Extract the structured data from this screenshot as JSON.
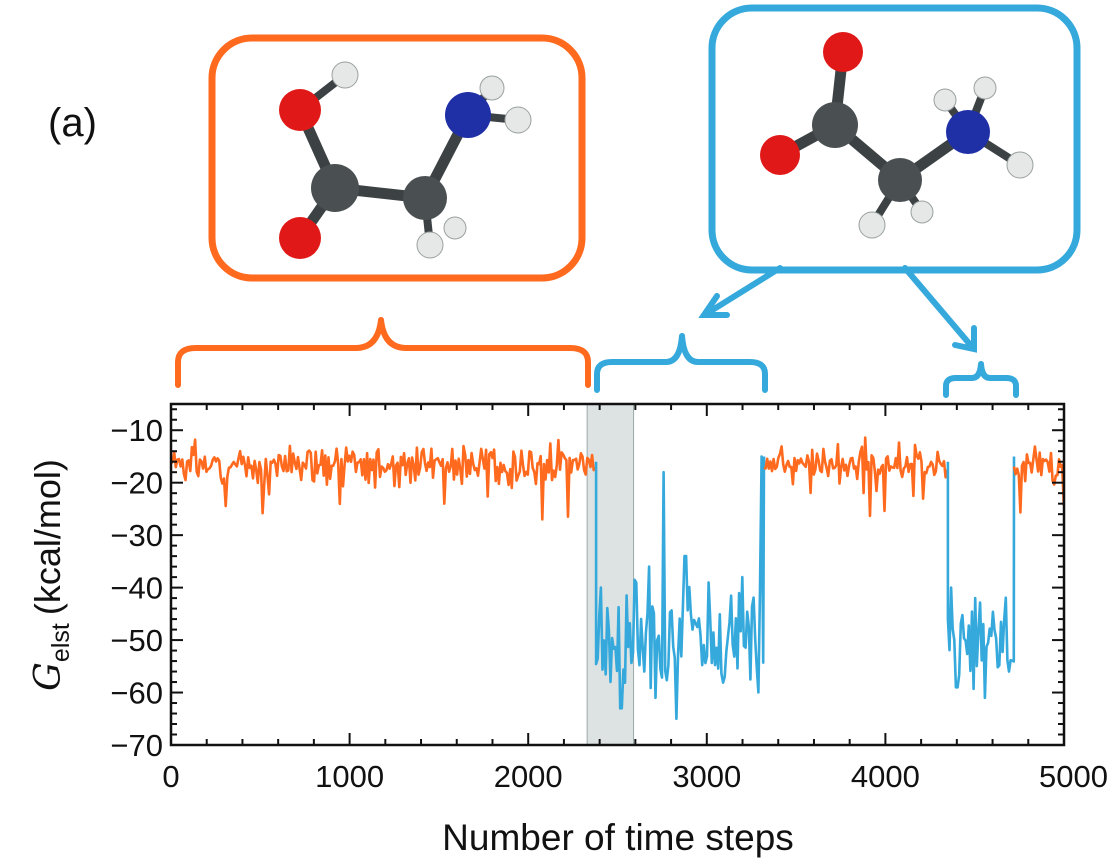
{
  "panel_label": "(a)",
  "colors": {
    "neutral": "#ff6a1f",
    "zwitterion": "#35a8dc",
    "shade": "#dde3e3",
    "oxygen": "#e01818",
    "nitrogen": "#1f2fa6",
    "carbon": "#4a5052",
    "hydrogen": "#e6e8e8"
  },
  "chart_data": {
    "type": "line",
    "xlabel": "Number of time steps",
    "ylabel_main": "G",
    "ylabel_sub": "elst",
    "ylabel_unit": "(kcal/mol)",
    "xlim": [
      0,
      5000
    ],
    "ylim": [
      -70,
      -5
    ],
    "xticks": [
      0,
      1000,
      2000,
      3000,
      4000,
      5000
    ],
    "yticks": [
      -10,
      -20,
      -30,
      -40,
      -50,
      -60,
      -70
    ],
    "shaded_region": [
      2330,
      2590
    ],
    "segments": [
      {
        "state": "neutral",
        "x_start": 0,
        "x_end": 2380,
        "mean": -16.5,
        "std": 2.2,
        "seed": 3
      },
      {
        "state": "zwitterion",
        "x_start": 2380,
        "x_end": 3320,
        "mean": -49,
        "std": 6,
        "seed": 7
      },
      {
        "state": "neutral",
        "x_start": 3320,
        "x_end": 4350,
        "mean": -16.5,
        "std": 2.2,
        "seed": 11
      },
      {
        "state": "zwitterion",
        "x_start": 4350,
        "x_end": 4720,
        "mean": -50,
        "std": 5,
        "seed": 13
      },
      {
        "state": "neutral",
        "x_start": 4720,
        "x_end": 5000,
        "mean": -16.5,
        "std": 2.4,
        "seed": 17
      }
    ],
    "features": [
      {
        "x": 2410,
        "y": -40
      },
      {
        "x": 2460,
        "y": -58
      },
      {
        "x": 2520,
        "y": -63
      },
      {
        "x": 2650,
        "y": -56
      },
      {
        "x": 2680,
        "y": -36
      },
      {
        "x": 2710,
        "y": -61
      },
      {
        "x": 2760,
        "y": -18
      },
      {
        "x": 2830,
        "y": -65
      },
      {
        "x": 2880,
        "y": -34
      },
      {
        "x": 3010,
        "y": -39
      },
      {
        "x": 3100,
        "y": -57
      },
      {
        "x": 3200,
        "y": -38
      },
      {
        "x": 3290,
        "y": -60
      },
      {
        "x": 3310,
        "y": -15
      },
      {
        "x": 4370,
        "y": -40
      },
      {
        "x": 4400,
        "y": -59
      },
      {
        "x": 4500,
        "y": -42
      },
      {
        "x": 4560,
        "y": -61
      },
      {
        "x": 4690,
        "y": -56
      },
      {
        "x": 1530,
        "y": -24
      },
      {
        "x": 2080,
        "y": -27
      }
    ]
  }
}
